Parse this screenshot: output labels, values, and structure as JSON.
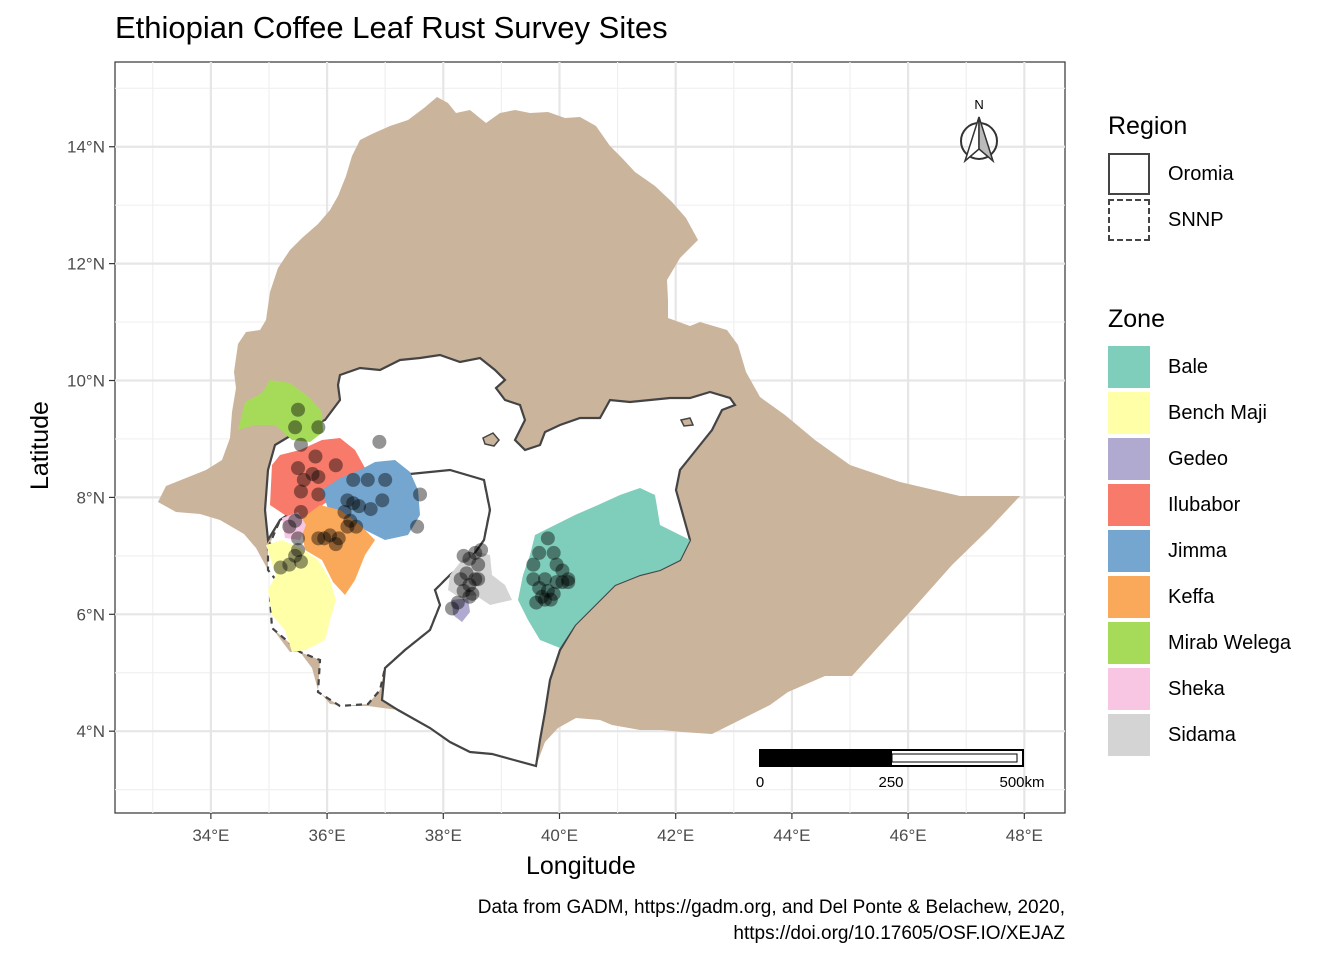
{
  "title": "Ethiopian Coffee Leaf Rust Survey Sites",
  "caption": {
    "line1": "Data from GADM, https://gadm.org, and Del Ponte & Belachew, 2020,",
    "line2": "https://doi.org/10.17605/OSF.IO/XEJAZ"
  },
  "axes": {
    "xlabel": "Longitude",
    "ylabel": "Latitude",
    "xticks": [
      "34°E",
      "36°E",
      "38°E",
      "40°E",
      "42°E",
      "44°E",
      "46°E",
      "48°E"
    ],
    "yticks": [
      "4°N",
      "6°N",
      "8°N",
      "10°N",
      "12°N",
      "14°N"
    ],
    "lon_range": [
      32.35,
      48.7
    ],
    "lat_range": [
      2.6,
      15.45
    ]
  },
  "north_arrow": {
    "label": "N"
  },
  "scale_bar": {
    "labels": [
      "0",
      "250",
      "500km"
    ]
  },
  "legend_region": {
    "title": "Region",
    "items": [
      {
        "label": "Oromia",
        "line": "solid"
      },
      {
        "label": "SNNP",
        "line": "dashed"
      }
    ]
  },
  "legend_zone": {
    "title": "Zone",
    "items": [
      {
        "label": "Bale",
        "color": "#7fcdbb"
      },
      {
        "label": "Bench Maji",
        "color": "#ffffa8"
      },
      {
        "label": "Gedeo",
        "color": "#b0aad1"
      },
      {
        "label": "Ilubabor",
        "color": "#f77a6a"
      },
      {
        "label": "Jimma",
        "color": "#74a6cf"
      },
      {
        "label": "Keffa",
        "color": "#faa85a"
      },
      {
        "label": "Mirab Welega",
        "color": "#a6db5a"
      },
      {
        "label": "Sheka",
        "color": "#f8c6e2"
      },
      {
        "label": "Sidama",
        "color": "#d4d4d4"
      }
    ]
  },
  "colors": {
    "country_fill": "#cbb49c",
    "panel_grid": "#e6e6e6",
    "region_border": "#444444",
    "survey_point": "#000000"
  },
  "survey_sites": [
    [
      35.5,
      9.5
    ],
    [
      35.45,
      9.2
    ],
    [
      35.85,
      9.2
    ],
    [
      35.55,
      8.9
    ],
    [
      35.8,
      8.7
    ],
    [
      36.15,
      8.55
    ],
    [
      35.5,
      8.5
    ],
    [
      35.75,
      8.4
    ],
    [
      35.85,
      8.35
    ],
    [
      35.6,
      8.3
    ],
    [
      35.55,
      8.1
    ],
    [
      35.85,
      8.05
    ],
    [
      36.45,
      8.3
    ],
    [
      36.7,
      8.3
    ],
    [
      37.0,
      8.3
    ],
    [
      36.9,
      8.95
    ],
    [
      37.6,
      8.05
    ],
    [
      37.55,
      7.5
    ],
    [
      36.35,
      7.95
    ],
    [
      36.45,
      7.9
    ],
    [
      36.55,
      7.85
    ],
    [
      36.75,
      7.8
    ],
    [
      36.95,
      7.95
    ],
    [
      36.3,
      7.75
    ],
    [
      36.4,
      7.6
    ],
    [
      36.35,
      7.5
    ],
    [
      36.5,
      7.5
    ],
    [
      35.55,
      7.75
    ],
    [
      35.35,
      7.5
    ],
    [
      35.45,
      7.6
    ],
    [
      35.5,
      7.3
    ],
    [
      35.5,
      7.1
    ],
    [
      35.45,
      7.0
    ],
    [
      35.55,
      6.9
    ],
    [
      35.35,
      6.85
    ],
    [
      35.2,
      6.8
    ],
    [
      35.85,
      7.3
    ],
    [
      36.05,
      7.35
    ],
    [
      35.95,
      7.3
    ],
    [
      36.2,
      7.3
    ],
    [
      36.15,
      7.2
    ],
    [
      38.35,
      7.0
    ],
    [
      38.45,
      6.95
    ],
    [
      38.55,
      7.05
    ],
    [
      38.65,
      7.1
    ],
    [
      38.6,
      6.85
    ],
    [
      38.4,
      6.7
    ],
    [
      38.55,
      6.6
    ],
    [
      38.45,
      6.5
    ],
    [
      38.35,
      6.4
    ],
    [
      38.5,
      6.35
    ],
    [
      38.3,
      6.6
    ],
    [
      38.25,
      6.2
    ],
    [
      38.15,
      6.1
    ],
    [
      38.6,
      6.6
    ],
    [
      38.45,
      6.3
    ],
    [
      39.8,
      7.3
    ],
    [
      39.9,
      7.05
    ],
    [
      39.65,
      7.05
    ],
    [
      39.95,
      6.85
    ],
    [
      40.05,
      6.75
    ],
    [
      39.55,
      6.85
    ],
    [
      39.75,
      6.6
    ],
    [
      39.95,
      6.55
    ],
    [
      40.05,
      6.55
    ],
    [
      40.15,
      6.6
    ],
    [
      39.65,
      6.45
    ],
    [
      39.8,
      6.4
    ],
    [
      39.55,
      6.6
    ],
    [
      39.7,
      6.3
    ],
    [
      39.85,
      6.25
    ],
    [
      39.6,
      6.2
    ],
    [
      39.75,
      6.25
    ],
    [
      39.9,
      6.35
    ],
    [
      40.15,
      6.55
    ]
  ]
}
